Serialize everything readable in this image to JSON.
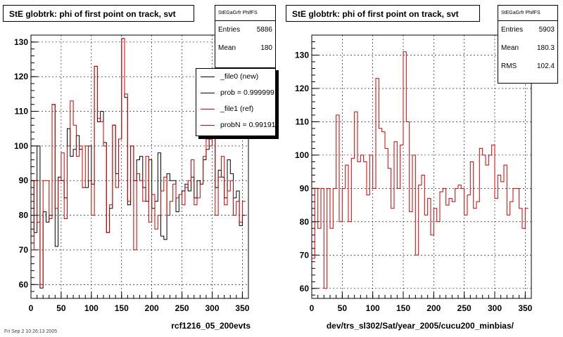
{
  "footer_text": "Fri Sep 2 10:26:13 2005",
  "left_panel": {
    "title": "StE globtrk: phi of first point on track, svt",
    "stats": {
      "name": "StEGaGrfr PhifFS",
      "entries_label": "Entries",
      "entries": "5886",
      "mean_label": "Mean",
      "mean": "180"
    },
    "legend": [
      {
        "label": "_file0 (new)",
        "color": "#000000"
      },
      {
        "label": "prob = 0.999999",
        "color": "#000000"
      },
      {
        "label": "_file1 (ref)",
        "color": "#cc0000"
      },
      {
        "label": "probN = 0.991915",
        "color": "#cc0000"
      }
    ],
    "xtitle": "rcf1216_05_200evts"
  },
  "right_panel": {
    "title": "StE globtrk: phi of first point on track, svt",
    "stats": {
      "name": "StEGaGrfr PhifFS",
      "entries_label": "Entries",
      "entries": "5903",
      "mean_label": "Mean",
      "mean": "180.3",
      "rms_label": "RMS",
      "rms": "102.4"
    },
    "xtitle": "dev/trs_sl302/Sat/year_2005/cucu200_minbias/"
  },
  "chart_data": [
    {
      "type": "line",
      "style": "step-histogram",
      "xlim": [
        0,
        360
      ],
      "ylim": [
        56,
        132
      ],
      "xticks": [
        0,
        50,
        100,
        150,
        200,
        250,
        300,
        350
      ],
      "yticks": [
        60,
        70,
        80,
        90,
        100,
        110,
        120,
        130
      ],
      "grid": true,
      "bin_width": 5,
      "series": [
        {
          "name": "_file0 (new)",
          "color": "#000000",
          "values": [
            90,
            75,
            100,
            59,
            81,
            78,
            80,
            112,
            71,
            91,
            90,
            85,
            105,
            97,
            99,
            103,
            99,
            88,
            88,
            100,
            89,
            123,
            107,
            110,
            101,
            75,
            82,
            106,
            92,
            102,
            131,
            114,
            83,
            100,
            90,
            96,
            97,
            88,
            84,
            96,
            82,
            84,
            98,
            74,
            73,
            92,
            90,
            90,
            81,
            86,
            87,
            89,
            87,
            91,
            85,
            90,
            89,
            96,
            99,
            102,
            105,
            88,
            93,
            91,
            85,
            96,
            92,
            85,
            87,
            77,
            80
          ]
        },
        {
          "name": "_file1 (ref)",
          "color": "#cc0000",
          "values": [
            70,
            90,
            78,
            60,
            90,
            90,
            79,
            112,
            82,
            90,
            98,
            79,
            100,
            113,
            106,
            97,
            100,
            88,
            100,
            90,
            80,
            123,
            108,
            107,
            100,
            75,
            83,
            106,
            88,
            102,
            131,
            115,
            84,
            100,
            70,
            92,
            90,
            84,
            97,
            78,
            86,
            76,
            80,
            87,
            91,
            80,
            84,
            89,
            85,
            86,
            83,
            88,
            90,
            96,
            83,
            85,
            89,
            97,
            102,
            100,
            103,
            80,
            91,
            97,
            83,
            87,
            90,
            80,
            84,
            78,
            84
          ]
        }
      ]
    },
    {
      "type": "line",
      "style": "step-histogram",
      "xlim": [
        0,
        360
      ],
      "ylim": [
        57,
        136
      ],
      "xticks": [
        0,
        50,
        100,
        150,
        200,
        250,
        300,
        350
      ],
      "yticks": [
        60,
        70,
        80,
        90,
        100,
        110,
        120,
        130
      ],
      "grid": true,
      "bin_width": 5,
      "series": [
        {
          "name": "",
          "color": "#cc0000",
          "values": [
            69,
            90,
            78,
            90,
            60,
            90,
            78,
            90,
            112,
            80,
            90,
            97,
            80,
            99,
            113,
            98,
            100,
            98,
            88,
            100,
            90,
            123,
            108,
            107,
            102,
            96,
            84,
            104,
            90,
            103,
            131,
            110,
            83,
            100,
            70,
            91,
            94,
            82,
            87,
            76,
            84,
            80,
            89,
            90,
            85,
            87,
            86,
            90,
            91,
            90,
            82,
            88,
            98,
            84,
            86,
            102,
            100,
            97,
            100,
            103,
            87,
            94,
            92,
            97,
            82,
            86,
            90,
            90,
            84,
            78,
            84
          ]
        }
      ]
    }
  ]
}
